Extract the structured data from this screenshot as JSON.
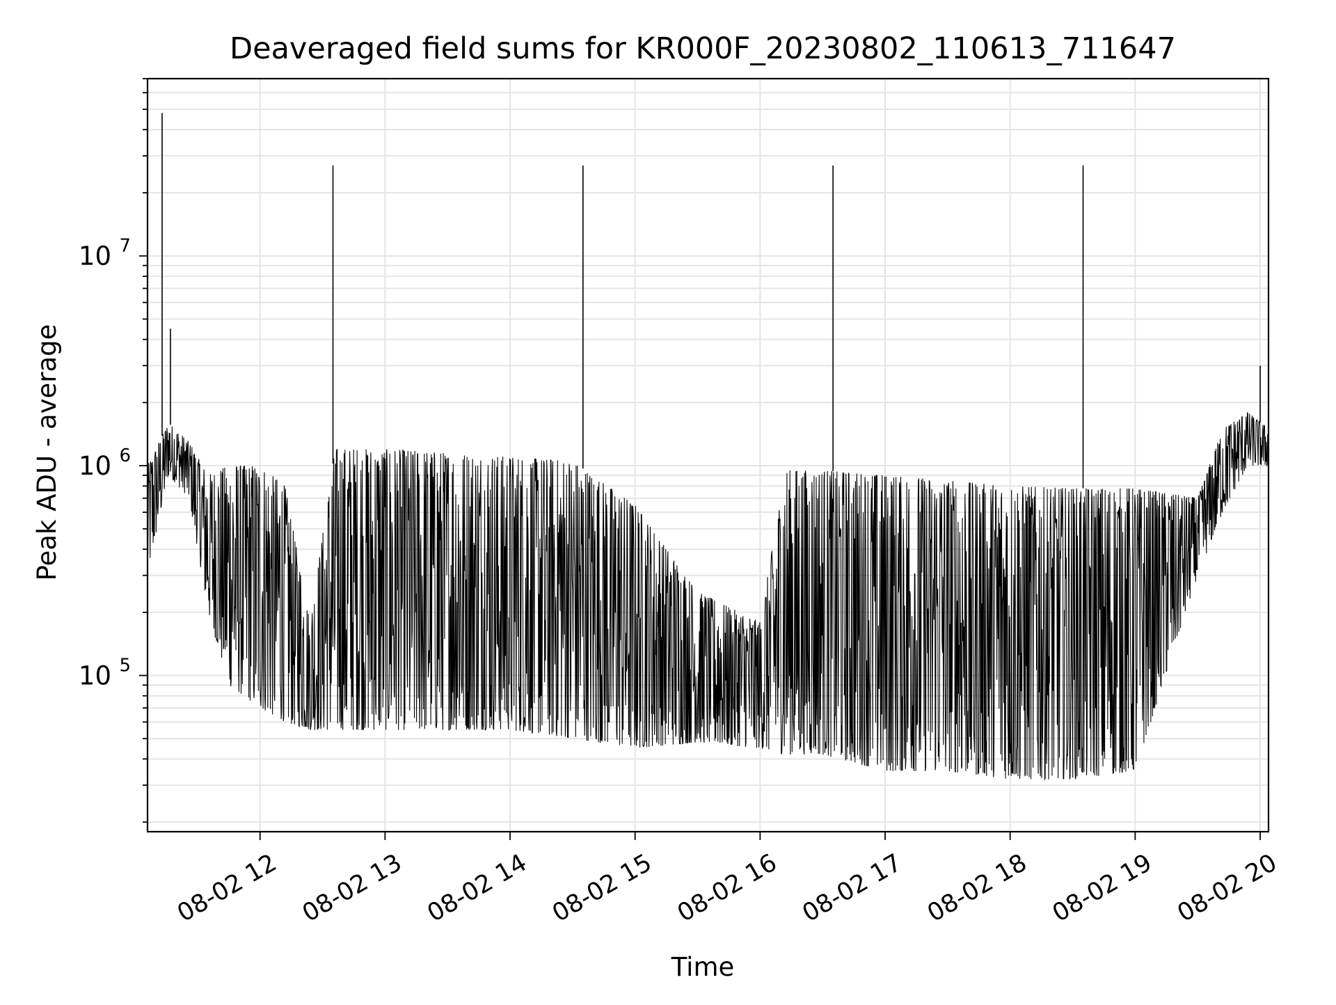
{
  "chart_data": {
    "type": "line",
    "title": "Deaveraged field sums for KR000F_20230802_110613_711647",
    "xlabel": "Time",
    "ylabel": "Peak ADU - average",
    "yscale": "log",
    "xlim": [
      "2023-08-02 11:06",
      "2023-08-02 20:04"
    ],
    "ylim": [
      18000,
      70000000
    ],
    "grid": true,
    "xticks": [
      {
        "t": "2023-08-02 12:00",
        "label": "08-02 12"
      },
      {
        "t": "2023-08-02 13:00",
        "label": "08-02 13"
      },
      {
        "t": "2023-08-02 14:00",
        "label": "08-02 14"
      },
      {
        "t": "2023-08-02 15:00",
        "label": "08-02 15"
      },
      {
        "t": "2023-08-02 16:00",
        "label": "08-02 16"
      },
      {
        "t": "2023-08-02 17:00",
        "label": "08-02 17"
      },
      {
        "t": "2023-08-02 18:00",
        "label": "08-02 18"
      },
      {
        "t": "2023-08-02 19:00",
        "label": "08-02 19"
      },
      {
        "t": "2023-08-02 20:00",
        "label": "08-02 20"
      }
    ],
    "yticks": [
      {
        "value": 100000,
        "base": "10",
        "exp": "5"
      },
      {
        "value": 1000000,
        "base": "10",
        "exp": "6"
      },
      {
        "value": 10000000,
        "base": "10",
        "exp": "7"
      }
    ],
    "line_color": "#000000",
    "series": [
      {
        "profile": [
          {
            "t": "2023-08-02 11:06",
            "hi": 1000000,
            "lo": 300000
          },
          {
            "t": "2023-08-02 11:16",
            "hi": 1600000,
            "lo": 900000
          },
          {
            "t": "2023-08-02 11:26",
            "hi": 1300000,
            "lo": 700000
          },
          {
            "t": "2023-08-02 11:35",
            "hi": 900000,
            "lo": 200000
          },
          {
            "t": "2023-08-02 11:45",
            "hi": 1000000,
            "lo": 90000
          },
          {
            "t": "2023-08-02 12:00",
            "hi": 1000000,
            "lo": 70000
          },
          {
            "t": "2023-08-02 12:12",
            "hi": 800000,
            "lo": 60000
          },
          {
            "t": "2023-08-02 12:24",
            "hi": 180000,
            "lo": 55000
          },
          {
            "t": "2023-08-02 12:36",
            "hi": 1200000,
            "lo": 55000
          },
          {
            "t": "2023-08-02 13:00",
            "hi": 1200000,
            "lo": 55000
          },
          {
            "t": "2023-08-02 13:30",
            "hi": 1150000,
            "lo": 55000
          },
          {
            "t": "2023-08-02 14:00",
            "hi": 1100000,
            "lo": 55000
          },
          {
            "t": "2023-08-02 14:30",
            "hi": 1050000,
            "lo": 50000
          },
          {
            "t": "2023-08-02 15:00",
            "hi": 650000,
            "lo": 45000
          },
          {
            "t": "2023-08-02 15:30",
            "hi": 250000,
            "lo": 48000
          },
          {
            "t": "2023-08-02 16:00",
            "hi": 180000,
            "lo": 45000
          },
          {
            "t": "2023-08-02 16:12",
            "hi": 950000,
            "lo": 42000
          },
          {
            "t": "2023-08-02 16:30",
            "hi": 950000,
            "lo": 42000
          },
          {
            "t": "2023-08-02 17:00",
            "hi": 900000,
            "lo": 35000
          },
          {
            "t": "2023-08-02 17:30",
            "hi": 850000,
            "lo": 35000
          },
          {
            "t": "2023-08-02 18:00",
            "hi": 800000,
            "lo": 32000
          },
          {
            "t": "2023-08-02 18:30",
            "hi": 780000,
            "lo": 32000
          },
          {
            "t": "2023-08-02 19:00",
            "hi": 780000,
            "lo": 35000
          },
          {
            "t": "2023-08-02 19:30",
            "hi": 700000,
            "lo": 300000
          },
          {
            "t": "2023-08-02 19:42",
            "hi": 1500000,
            "lo": 600000
          },
          {
            "t": "2023-08-02 19:54",
            "hi": 1800000,
            "lo": 1000000
          },
          {
            "t": "2023-08-02 20:04",
            "hi": 1500000,
            "lo": 1000000
          }
        ],
        "spikes": [
          {
            "t": "2023-08-02 11:13",
            "value": 48000000
          },
          {
            "t": "2023-08-02 11:17",
            "value": 4500000
          },
          {
            "t": "2023-08-02 12:35",
            "value": 27000000
          },
          {
            "t": "2023-08-02 14:35",
            "value": 27000000
          },
          {
            "t": "2023-08-02 16:35",
            "value": 27000000
          },
          {
            "t": "2023-08-02 18:35",
            "value": 27000000
          },
          {
            "t": "2023-08-02 20:00",
            "value": 3000000
          }
        ]
      }
    ]
  }
}
